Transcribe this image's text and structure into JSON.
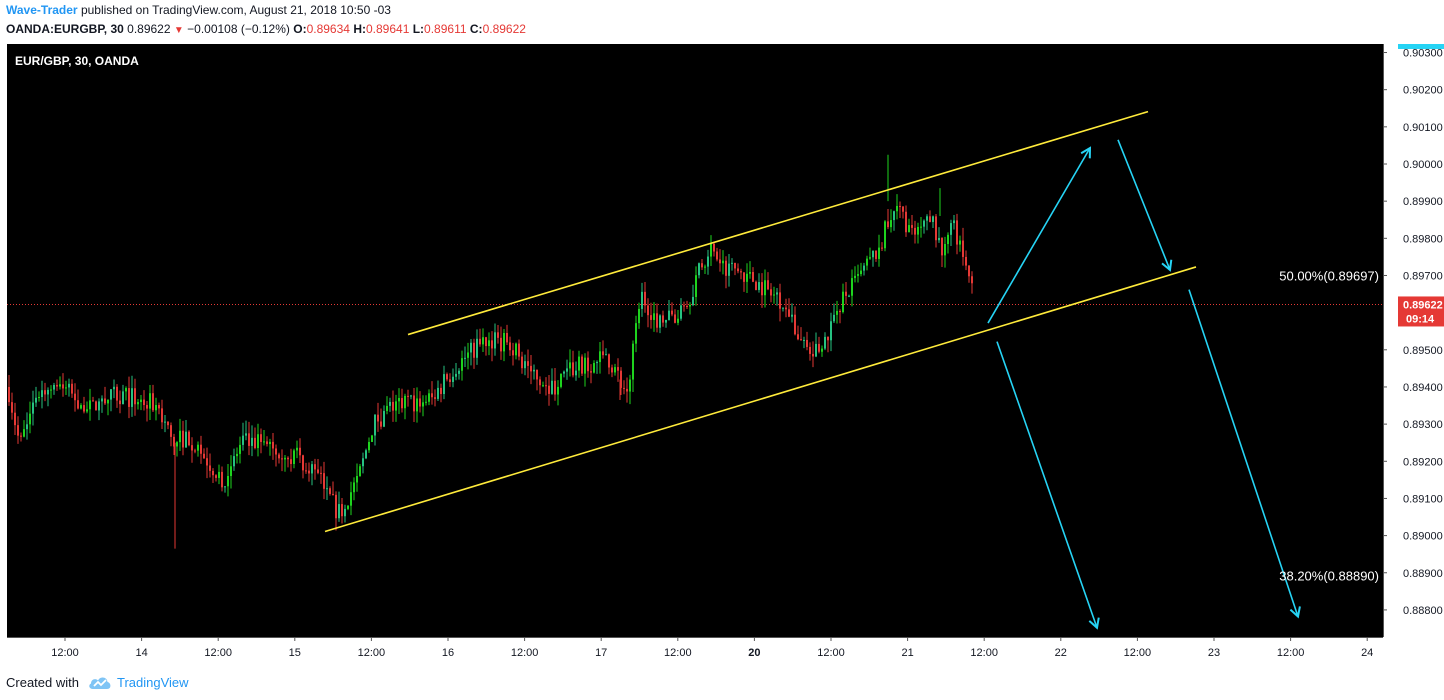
{
  "header": {
    "author": "Wave-Trader",
    "published_text": "published on TradingView.com, August 21, 2018 10:50 -03",
    "symbol": "OANDA:EURGBP, 30",
    "last": "0.89622",
    "change": "−0.00108 (−0.12%)",
    "open_label": "O:",
    "open": "0.89634",
    "high_label": "H:",
    "high": "0.89641",
    "low_label": "L:",
    "low": "0.89611",
    "close_label": "C:",
    "close": "0.89622"
  },
  "chart_data": {
    "type": "candlestick",
    "title": "EUR/GBP, 30, OANDA",
    "y_ticks": [
      "0.90300",
      "0.90200",
      "0.90100",
      "0.90000",
      "0.89900",
      "0.89800",
      "0.89700",
      "0.89500",
      "0.89400",
      "0.89300",
      "0.89200",
      "0.89100",
      "0.89000",
      "0.88900",
      "0.88800"
    ],
    "x_ticks": [
      "12:00",
      "14",
      "12:00",
      "15",
      "12:00",
      "16",
      "12:00",
      "17",
      "12:00",
      "20",
      "12:00",
      "21",
      "12:00",
      "22",
      "12:00",
      "23",
      "12:00",
      "24"
    ],
    "x_ticks_bold": [
      "20"
    ],
    "ylim": [
      0.8874,
      0.9031
    ],
    "last_price": {
      "label": "0.89622",
      "value": 0.89622,
      "countdown": "09:14"
    },
    "fib_levels": [
      {
        "label": "50.00%(0.89697)",
        "value": 0.89697
      },
      {
        "label": "38.20%(0.88890)",
        "value": 0.8889
      }
    ],
    "colors": {
      "up": "#26c281",
      "up_bright": "#1ed31e",
      "down": "#e53935",
      "channel": "#ffeb3b",
      "arrows": "#26d4f5",
      "background": "#000000",
      "price_line": "#e53935"
    },
    "candle_path_key_points": [
      [
        0,
        0.894
      ],
      [
        12,
        0.8924
      ],
      [
        28,
        0.8938
      ],
      [
        50,
        0.8941
      ],
      [
        80,
        0.8934
      ],
      [
        110,
        0.8938
      ],
      [
        150,
        0.8935
      ],
      [
        165,
        0.8925
      ],
      [
        180,
        0.8927
      ],
      [
        200,
        0.892
      ],
      [
        215,
        0.8915
      ],
      [
        235,
        0.8925
      ],
      [
        260,
        0.8925
      ],
      [
        290,
        0.8921
      ],
      [
        310,
        0.8916
      ],
      [
        330,
        0.8906
      ],
      [
        350,
        0.8915
      ],
      [
        365,
        0.893
      ],
      [
        385,
        0.8935
      ],
      [
        425,
        0.8937
      ],
      [
        445,
        0.8945
      ],
      [
        470,
        0.8951
      ],
      [
        485,
        0.8953
      ],
      [
        505,
        0.8951
      ],
      [
        520,
        0.8945
      ],
      [
        545,
        0.894
      ],
      [
        565,
        0.8945
      ],
      [
        600,
        0.8948
      ],
      [
        620,
        0.8938
      ],
      [
        632,
        0.8965
      ],
      [
        650,
        0.8958
      ],
      [
        675,
        0.896
      ],
      [
        700,
        0.8977
      ],
      [
        715,
        0.8973
      ],
      [
        740,
        0.897
      ],
      [
        775,
        0.8963
      ],
      [
        800,
        0.8948
      ],
      [
        815,
        0.895
      ],
      [
        830,
        0.8962
      ],
      [
        850,
        0.8969
      ],
      [
        870,
        0.8977
      ],
      [
        888,
        0.899
      ],
      [
        905,
        0.898
      ],
      [
        925,
        0.8985
      ],
      [
        935,
        0.8975
      ],
      [
        945,
        0.8983
      ],
      [
        955,
        0.8975
      ],
      [
        965,
        0.8968
      ],
      [
        972,
        0.8962
      ]
    ],
    "drawings": [
      {
        "kind": "channel-line",
        "from": [
          408,
          0.89541
        ],
        "to": [
          1148,
          0.90141
        ]
      },
      {
        "kind": "channel-line",
        "from": [
          325,
          0.89011
        ],
        "to": [
          1196,
          0.89723
        ]
      },
      {
        "kind": "arrow",
        "from": [
          988,
          0.89572
        ],
        "to": [
          1090,
          0.90043
        ]
      },
      {
        "kind": "arrow",
        "from": [
          1118,
          0.90065
        ],
        "to": [
          1170,
          0.89715
        ]
      },
      {
        "kind": "arrow",
        "from": [
          997,
          0.89522
        ],
        "to": [
          1097,
          0.88752
        ]
      },
      {
        "kind": "arrow",
        "from": [
          1189,
          0.89662
        ],
        "to": [
          1298,
          0.88782
        ]
      }
    ]
  },
  "footer": {
    "created_with": "Created with",
    "brand": "TradingView"
  }
}
